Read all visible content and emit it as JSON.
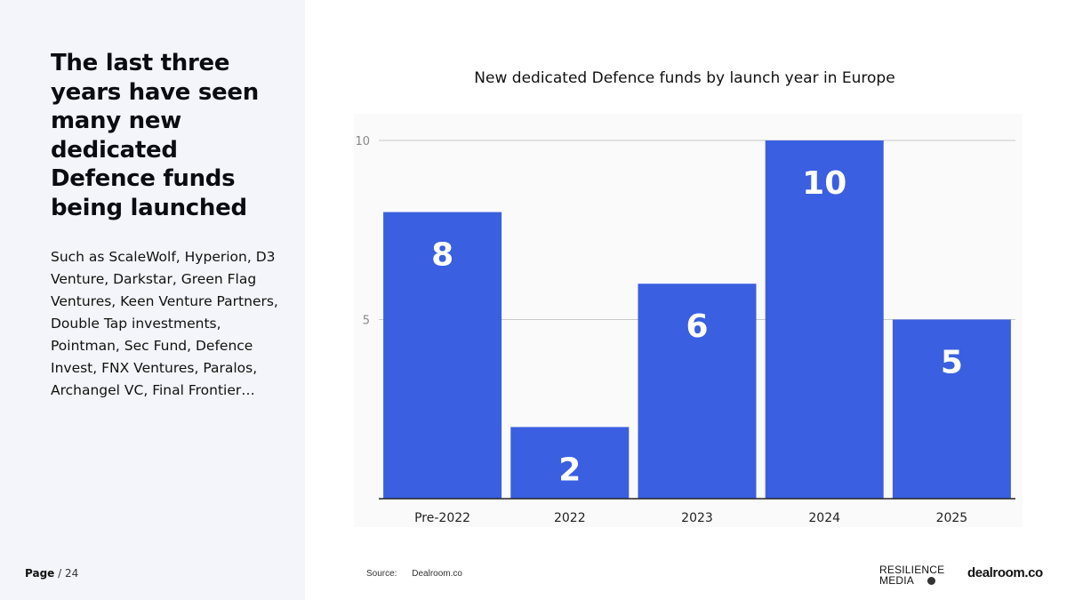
{
  "slide": {
    "headline": "The last three years have seen many new dedicated Defence funds being launched",
    "body": "Such as ScaleWolf, Hyperion, D3 Venture, Darkstar, Green Flag Ventures, Keen Venture Partners, Double Tap investments, Pointman, Sec Fund, Defence Invest, FNX Ventures, Paralos, Archangel VC, Final Frontier…",
    "page_label": "Page",
    "page_total": "/ 24"
  },
  "footer": {
    "source_label": "Source:",
    "source_value": "Dealroom.co",
    "logo_resilience_line1": "RESILIENCE",
    "logo_resilience_line2": "MEDIA",
    "logo_dealroom": "dealroom.co"
  },
  "colors": {
    "bar": "#3a5fe0",
    "panel": "#f4f5fa",
    "grid": "#c8c8c8"
  },
  "chart_data": {
    "type": "bar",
    "title": "New dedicated Defence funds by launch year in Europe",
    "categories": [
      "Pre-2022",
      "2022",
      "2023",
      "2024",
      "2025"
    ],
    "values": [
      8,
      2,
      6,
      10,
      5
    ],
    "xlabel": "",
    "ylabel": "",
    "ylim": [
      0,
      10
    ],
    "yticks": [
      5,
      10
    ],
    "grid": true,
    "data_labels": true
  }
}
